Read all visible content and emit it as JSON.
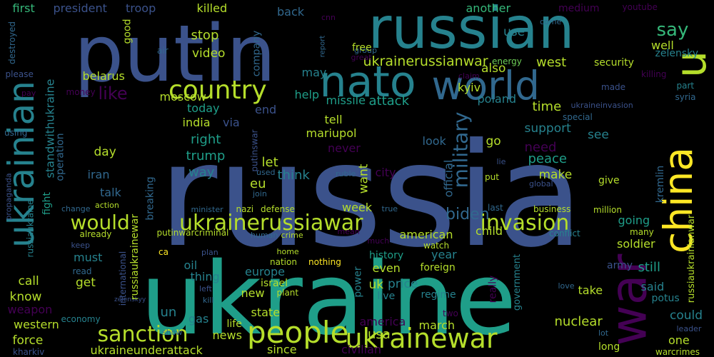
{
  "background": "#000000",
  "palette": {
    "deep_purple": "#440154",
    "indigo": "#3b528b",
    "slate_blue": "#31688e",
    "teal_blue": "#26828e",
    "teal": "#1f9e89",
    "green": "#35b779",
    "lime": "#6ece58",
    "yellow_green": "#b5de2b",
    "yellow": "#fde725"
  },
  "words": [
    {
      "text": "russia",
      "color": "#3b528b",
      "rotate": false
    },
    {
      "text": "ukraine",
      "color": "#1f9e89",
      "rotate": false
    },
    {
      "text": "putin",
      "color": "#3b528b",
      "rotate": false
    },
    {
      "text": "russian",
      "color": "#26828e",
      "rotate": false
    },
    {
      "text": "nato",
      "color": "#26828e",
      "rotate": false
    },
    {
      "text": "world",
      "color": "#31688e",
      "rotate": false
    },
    {
      "text": "ukrainian",
      "color": "#26828e",
      "rotate": true
    },
    {
      "text": "war",
      "color": "#440154",
      "rotate": true
    },
    {
      "text": "china",
      "color": "#fde725",
      "rotate": true
    },
    {
      "text": "u",
      "color": "#b5de2b",
      "rotate": true
    },
    {
      "text": "country",
      "color": "#b5de2b",
      "rotate": false
    },
    {
      "text": "people",
      "color": "#b5de2b",
      "rotate": false
    },
    {
      "text": "sanction",
      "color": "#b5de2b",
      "rotate": false
    },
    {
      "text": "ukrainewar",
      "color": "#b5de2b",
      "rotate": false
    },
    {
      "text": "ukrainerussiawar",
      "color": "#b5de2b",
      "rotate": false
    },
    {
      "text": "invasion",
      "color": "#b5de2b",
      "rotate": false
    },
    {
      "text": "would",
      "color": "#b5de2b",
      "rotate": false
    },
    {
      "text": "biden",
      "color": "#31688e",
      "rotate": false
    },
    {
      "text": "say",
      "color": "#35b779",
      "rotate": false
    },
    {
      "text": "like",
      "color": "#440154",
      "rotate": false
    },
    {
      "text": "military",
      "color": "#31688e",
      "rotate": true
    },
    {
      "text": "first",
      "color": "#35b779",
      "rotate": false
    },
    {
      "text": "president",
      "color": "#3b528b",
      "rotate": false
    },
    {
      "text": "troop",
      "color": "#3b528b",
      "rotate": false
    },
    {
      "text": "killed",
      "color": "#b5de2b",
      "rotate": false
    },
    {
      "text": "back",
      "color": "#31688e",
      "rotate": false
    },
    {
      "text": "cnn",
      "color": "#440154",
      "rotate": false
    },
    {
      "text": "ukrainerussianwar",
      "color": "#b5de2b",
      "rotate": false
    },
    {
      "text": "another",
      "color": "#35b779",
      "rotate": false
    },
    {
      "text": "medium",
      "color": "#440154",
      "rotate": false
    },
    {
      "text": "youtube",
      "color": "#440154",
      "rotate": false
    },
    {
      "text": "zelensky",
      "color": "#26828e",
      "rotate": false
    },
    {
      "text": "well",
      "color": "#b5de2b",
      "rotate": false
    },
    {
      "text": "stop",
      "color": "#b5de2b",
      "rotate": false
    },
    {
      "text": "video",
      "color": "#b5de2b",
      "rotate": false
    },
    {
      "text": "company",
      "color": "#31688e",
      "rotate": true
    },
    {
      "text": "group",
      "color": "#31688e",
      "rotate": false
    },
    {
      "text": "use",
      "color": "#26828e",
      "rotate": false
    },
    {
      "text": "come",
      "color": "#31688e",
      "rotate": false
    },
    {
      "text": "free",
      "color": "#b5de2b",
      "rotate": false
    },
    {
      "text": "great",
      "color": "#440154",
      "rotate": false
    },
    {
      "text": "security",
      "color": "#b5de2b",
      "rotate": false
    },
    {
      "text": "killing",
      "color": "#440154",
      "rotate": false
    },
    {
      "text": "energy",
      "color": "#6ece58",
      "rotate": false
    },
    {
      "text": "also",
      "color": "#b5de2b",
      "rotate": false
    },
    {
      "text": "west",
      "color": "#b5de2b",
      "rotate": false
    },
    {
      "text": "may",
      "color": "#26828e",
      "rotate": false
    },
    {
      "text": "belarus",
      "color": "#b5de2b",
      "rotate": false
    },
    {
      "text": "moscow",
      "color": "#b5de2b",
      "rotate": false
    },
    {
      "text": "help",
      "color": "#1f9e89",
      "rotate": false
    },
    {
      "text": "missile",
      "color": "#1f9e89",
      "rotate": false
    },
    {
      "text": "attack",
      "color": "#1f9e89",
      "rotate": false
    },
    {
      "text": "kyiv",
      "color": "#b5de2b",
      "rotate": false
    },
    {
      "text": "poland",
      "color": "#26828e",
      "rotate": false
    },
    {
      "text": "today",
      "color": "#1f9e89",
      "rotate": false
    },
    {
      "text": "end",
      "color": "#3b528b",
      "rotate": false
    },
    {
      "text": "via",
      "color": "#3b528b",
      "rotate": false
    },
    {
      "text": "india",
      "color": "#b5de2b",
      "rotate": false
    },
    {
      "text": "tell",
      "color": "#b5de2b",
      "rotate": false
    },
    {
      "text": "time",
      "color": "#b5de2b",
      "rotate": false
    },
    {
      "text": "support",
      "color": "#26828e",
      "rotate": false
    },
    {
      "text": "mariupol",
      "color": "#b5de2b",
      "rotate": false
    },
    {
      "text": "right",
      "color": "#1f9e89",
      "rotate": false
    },
    {
      "text": "trump",
      "color": "#1f9e89",
      "rotate": false
    },
    {
      "text": "look",
      "color": "#31688e",
      "rotate": false
    },
    {
      "text": "go",
      "color": "#b5de2b",
      "rotate": false
    },
    {
      "text": "need",
      "color": "#440154",
      "rotate": false
    },
    {
      "text": "see",
      "color": "#26828e",
      "rotate": false
    },
    {
      "text": "never",
      "color": "#440154",
      "rotate": false
    },
    {
      "text": "day",
      "color": "#b5de2b",
      "rotate": false
    },
    {
      "text": "let",
      "color": "#b5de2b",
      "rotate": false
    },
    {
      "text": "peace",
      "color": "#1f9e89",
      "rotate": false
    },
    {
      "text": "think",
      "color": "#26828e",
      "rotate": false
    },
    {
      "text": "want",
      "color": "#b5de2b",
      "rotate": true
    },
    {
      "text": "city",
      "color": "#440154",
      "rotate": false
    },
    {
      "text": "official",
      "color": "#31688e",
      "rotate": true
    },
    {
      "text": "make",
      "color": "#b5de2b",
      "rotate": false
    },
    {
      "text": "iran",
      "color": "#31688e",
      "rotate": false
    },
    {
      "text": "way",
      "color": "#26828e",
      "rotate": false
    },
    {
      "text": "eu",
      "color": "#b5de2b",
      "rotate": false
    },
    {
      "text": "kremlin",
      "color": "#31688e",
      "rotate": true
    },
    {
      "text": "lie",
      "color": "#3b528b",
      "rotate": false
    },
    {
      "text": "put",
      "color": "#b5de2b",
      "rotate": false
    },
    {
      "text": "give",
      "color": "#b5de2b",
      "rotate": false
    },
    {
      "text": "global",
      "color": "#3b528b",
      "rotate": false
    },
    {
      "text": "talk",
      "color": "#31688e",
      "rotate": false
    },
    {
      "text": "breaking",
      "color": "#31688e",
      "rotate": true
    },
    {
      "text": "join",
      "color": "#31688e",
      "rotate": false
    },
    {
      "text": "used",
      "color": "#31688e",
      "rotate": false
    },
    {
      "text": "ruble",
      "color": "#31688e",
      "rotate": false
    },
    {
      "text": "action",
      "color": "#b5de2b",
      "rotate": false
    },
    {
      "text": "change",
      "color": "#31688e",
      "rotate": false
    },
    {
      "text": "minister",
      "color": "#31688e",
      "rotate": false
    },
    {
      "text": "nazi",
      "color": "#b5de2b",
      "rotate": false
    },
    {
      "text": "defense",
      "color": "#b5de2b",
      "rotate": false
    },
    {
      "text": "week",
      "color": "#b5de2b",
      "rotate": false
    },
    {
      "text": "true",
      "color": "#31688e",
      "rotate": false
    },
    {
      "text": "last",
      "color": "#31688e",
      "rotate": false
    },
    {
      "text": "business",
      "color": "#b5de2b",
      "rotate": false
    },
    {
      "text": "million",
      "color": "#b5de2b",
      "rotate": false
    },
    {
      "text": "going",
      "color": "#1f9e89",
      "rotate": false
    },
    {
      "text": "child",
      "color": "#b5de2b",
      "rotate": false
    },
    {
      "text": "american",
      "color": "#b5de2b",
      "rotate": false
    },
    {
      "text": "conflict",
      "color": "#26828e",
      "rotate": false
    },
    {
      "text": "many",
      "color": "#b5de2b",
      "rotate": false
    },
    {
      "text": "soldier",
      "color": "#b5de2b",
      "rotate": false
    },
    {
      "text": "already",
      "color": "#b5de2b",
      "rotate": false
    },
    {
      "text": "putinwarcriminal",
      "color": "#b5de2b",
      "rotate": false
    },
    {
      "text": "human",
      "color": "#31688e",
      "rotate": false
    },
    {
      "text": "crime",
      "color": "#b5de2b",
      "rotate": false
    },
    {
      "text": "mean",
      "color": "#440154",
      "rotate": false
    },
    {
      "text": "much",
      "color": "#440154",
      "rotate": false
    },
    {
      "text": "watch",
      "color": "#b5de2b",
      "rotate": false
    },
    {
      "text": "year",
      "color": "#26828e",
      "rotate": false
    },
    {
      "text": "must",
      "color": "#26828e",
      "rotate": false
    },
    {
      "text": "keep",
      "color": "#3b528b",
      "rotate": false
    },
    {
      "text": "ca",
      "color": "#fde725",
      "rotate": false
    },
    {
      "text": "plan",
      "color": "#3b528b",
      "rotate": false
    },
    {
      "text": "home",
      "color": "#b5de2b",
      "rotate": false
    },
    {
      "text": "history",
      "color": "#1f9e89",
      "rotate": false
    },
    {
      "text": "foreign",
      "color": "#b5de2b",
      "rotate": false
    },
    {
      "text": "army",
      "color": "#3b528b",
      "rotate": false
    },
    {
      "text": "oil",
      "color": "#26828e",
      "rotate": false
    },
    {
      "text": "nation",
      "color": "#b5de2b",
      "rotate": false
    },
    {
      "text": "nothing",
      "color": "#fde725",
      "rotate": false
    },
    {
      "text": "even",
      "color": "#b5de2b",
      "rotate": false
    },
    {
      "text": "still",
      "color": "#1f9e89",
      "rotate": false
    },
    {
      "text": "thing",
      "color": "#26828e",
      "rotate": false
    },
    {
      "text": "europe",
      "color": "#26828e",
      "rotate": false
    },
    {
      "text": "read",
      "color": "#31688e",
      "rotate": false
    },
    {
      "text": "call",
      "color": "#b5de2b",
      "rotate": false
    },
    {
      "text": "get",
      "color": "#b5de2b",
      "rotate": false
    },
    {
      "text": "international",
      "color": "#3b528b",
      "rotate": true
    },
    {
      "text": "left",
      "color": "#3b528b",
      "rotate": false
    },
    {
      "text": "power",
      "color": "#26828e",
      "rotate": true
    },
    {
      "text": "uk",
      "color": "#b5de2b",
      "rotate": false
    },
    {
      "text": "israel",
      "color": "#b5de2b",
      "rotate": false
    },
    {
      "text": "price",
      "color": "#26828e",
      "rotate": false
    },
    {
      "text": "love",
      "color": "#31688e",
      "rotate": false
    },
    {
      "text": "said",
      "color": "#26828e",
      "rotate": false
    },
    {
      "text": "potus",
      "color": "#26828e",
      "rotate": false
    },
    {
      "text": "know",
      "color": "#b5de2b",
      "rotate": false
    },
    {
      "text": "kill",
      "color": "#31688e",
      "rotate": false
    },
    {
      "text": "new",
      "color": "#b5de2b",
      "rotate": false
    },
    {
      "text": "plant",
      "color": "#b5de2b",
      "rotate": false
    },
    {
      "text": "live",
      "color": "#26828e",
      "rotate": false
    },
    {
      "text": "regime",
      "color": "#26828e",
      "rotate": false
    },
    {
      "text": "take",
      "color": "#b5de2b",
      "rotate": false
    },
    {
      "text": "weapon",
      "color": "#440154",
      "rotate": false
    },
    {
      "text": "zelenskyy",
      "color": "#3b528b",
      "rotate": false
    },
    {
      "text": "un",
      "color": "#26828e",
      "rotate": false
    },
    {
      "text": "state",
      "color": "#b5de2b",
      "rotate": false
    },
    {
      "text": "really",
      "color": "#440154",
      "rotate": true
    },
    {
      "text": "government",
      "color": "#26828e",
      "rotate": true
    },
    {
      "text": "two",
      "color": "#440154",
      "rotate": false
    },
    {
      "text": "could",
      "color": "#26828e",
      "rotate": false
    },
    {
      "text": "economy",
      "color": "#26828e",
      "rotate": false
    },
    {
      "text": "gas",
      "color": "#26828e",
      "rotate": false
    },
    {
      "text": "western",
      "color": "#b5de2b",
      "rotate": false
    },
    {
      "text": "america",
      "color": "#440154",
      "rotate": false
    },
    {
      "text": "nuclear",
      "color": "#b5de2b",
      "rotate": false
    },
    {
      "text": "one",
      "color": "#b5de2b",
      "rotate": false
    },
    {
      "text": "life",
      "color": "#b5de2b",
      "rotate": false
    },
    {
      "text": "march",
      "color": "#b5de2b",
      "rotate": false
    },
    {
      "text": "leader",
      "color": "#3b528b",
      "rotate": false
    },
    {
      "text": "force",
      "color": "#b5de2b",
      "rotate": false
    },
    {
      "text": "show",
      "color": "#31688e",
      "rotate": false
    },
    {
      "text": "news",
      "color": "#b5de2b",
      "rotate": false
    },
    {
      "text": "usa",
      "color": "#b5de2b",
      "rotate": false
    },
    {
      "text": "lot",
      "color": "#31688e",
      "rotate": false
    },
    {
      "text": "kharkiv",
      "color": "#3b528b",
      "rotate": false
    },
    {
      "text": "ukraineunderattack",
      "color": "#b5de2b",
      "rotate": false
    },
    {
      "text": "since",
      "color": "#b5de2b",
      "rotate": false
    },
    {
      "text": "civilian",
      "color": "#440154",
      "rotate": false
    },
    {
      "text": "long",
      "color": "#b5de2b",
      "rotate": false
    },
    {
      "text": "warcrimes",
      "color": "#b5de2b",
      "rotate": false
    },
    {
      "text": "destroyed",
      "color": "#31688e",
      "rotate": true
    },
    {
      "text": "please",
      "color": "#3b528b",
      "rotate": false
    },
    {
      "text": "pay",
      "color": "#440154",
      "rotate": false
    },
    {
      "text": "money",
      "color": "#440154",
      "rotate": false
    },
    {
      "text": "standwithukraine",
      "color": "#26828e",
      "rotate": true
    },
    {
      "text": "good",
      "color": "#b5de2b",
      "rotate": true
    },
    {
      "text": "air",
      "color": "#31688e",
      "rotate": false
    },
    {
      "text": "report",
      "color": "#31688e",
      "rotate": true
    },
    {
      "text": "claim",
      "color": "#440154",
      "rotate": false
    },
    {
      "text": "made",
      "color": "#3b528b",
      "rotate": false
    },
    {
      "text": "part",
      "color": "#26828e",
      "rotate": false
    },
    {
      "text": "syria",
      "color": "#31688e",
      "rotate": false
    },
    {
      "text": "ukraineinvasion",
      "color": "#3b528b",
      "rotate": false
    },
    {
      "text": "special",
      "color": "#31688e",
      "rotate": false
    },
    {
      "text": "using",
      "color": "#31688e",
      "rotate": false
    },
    {
      "text": "operation",
      "color": "#31688e",
      "rotate": true
    },
    {
      "text": "putinswar",
      "color": "#3b528b",
      "rotate": true
    },
    {
      "text": "propaganda",
      "color": "#3b528b",
      "rotate": true
    },
    {
      "text": "russiaukraine",
      "color": "#26828e",
      "rotate": true
    },
    {
      "text": "fight",
      "color": "#1f9e89",
      "rotate": true
    },
    {
      "text": "russiaukrainewar",
      "color": "#b5de2b",
      "rotate": true
    },
    {
      "text": "russiaukrainianwar",
      "color": "#b5de2b",
      "rotate": true
    }
  ]
}
